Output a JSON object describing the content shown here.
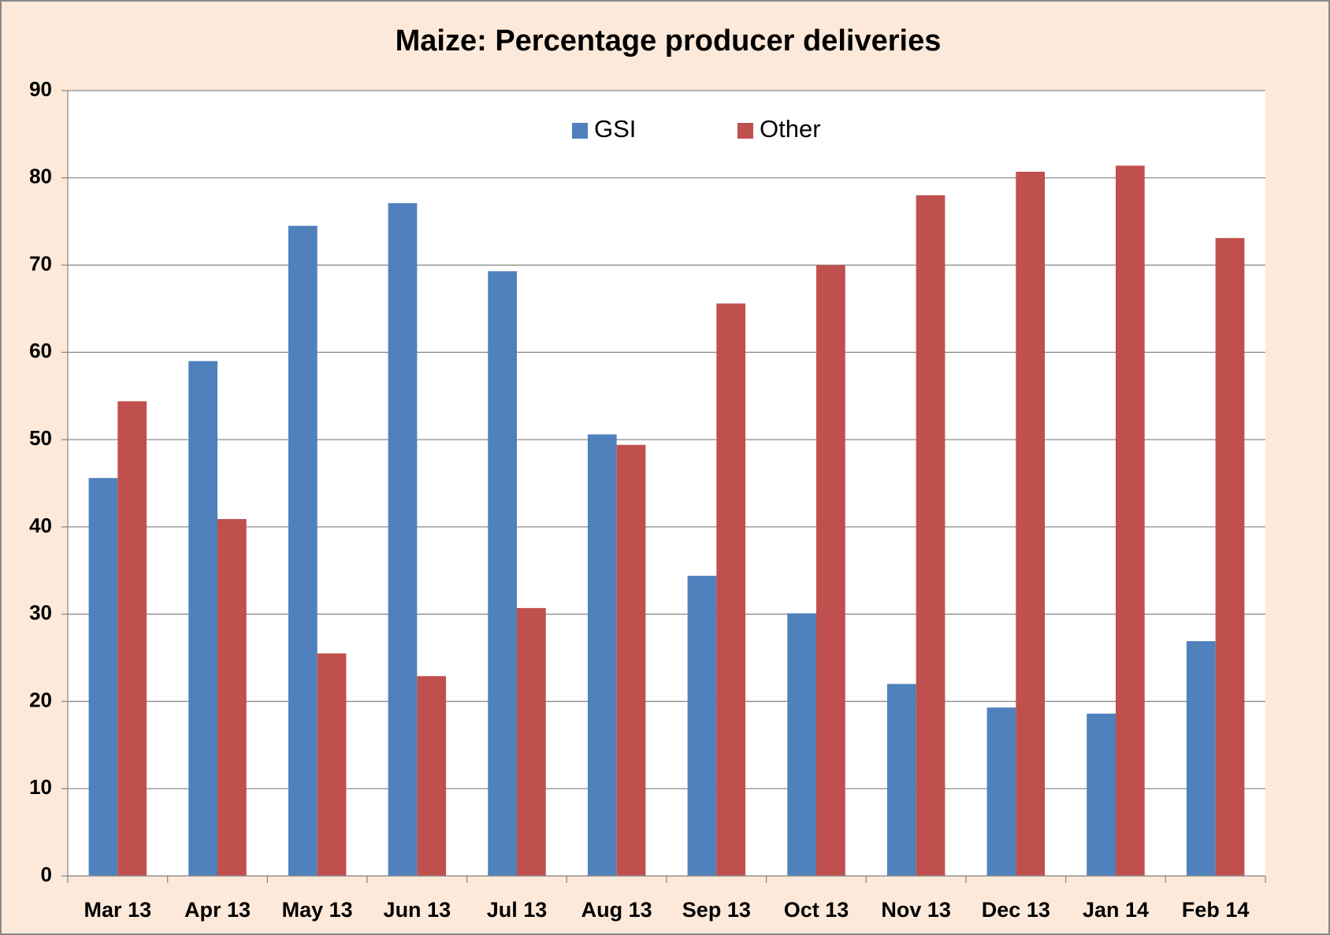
{
  "chart_data": {
    "type": "bar",
    "title": "Maize: Percentage producer deliveries",
    "categories": [
      "Mar 13",
      "Apr 13",
      "May 13",
      "Jun 13",
      "Jul 13",
      "Aug 13",
      "Sep 13",
      "Oct 13",
      "Nov 13",
      "Dec 13",
      "Jan 14",
      "Feb 14"
    ],
    "series": [
      {
        "name": "GSI",
        "color": "#4f81bd",
        "values": [
          45.6,
          59.0,
          74.5,
          77.1,
          69.3,
          50.6,
          34.4,
          30.1,
          22.0,
          19.3,
          18.6,
          26.9
        ]
      },
      {
        "name": "Other",
        "color": "#c0504d",
        "values": [
          54.4,
          40.9,
          25.5,
          22.9,
          30.7,
          49.4,
          65.6,
          70.0,
          78.0,
          80.7,
          81.4,
          73.1
        ]
      }
    ],
    "ylim": [
      0,
      90
    ],
    "yticks": [
      0,
      10,
      20,
      30,
      40,
      50,
      60,
      70,
      80,
      90
    ],
    "grid": true,
    "legend": "top"
  }
}
